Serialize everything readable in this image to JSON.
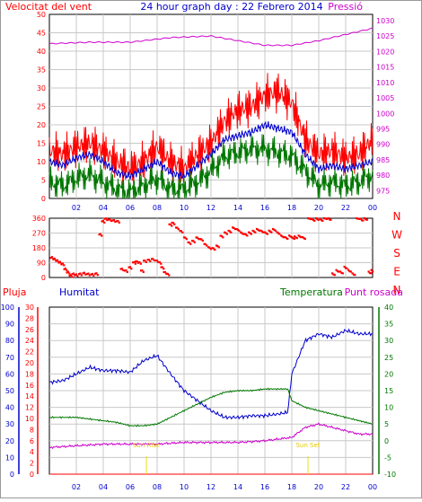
{
  "top_panel": {
    "title": "24 hour graph day : 22 Febrero 2014",
    "left_label": "Velocitat del vent",
    "right_label": "Pressió"
  },
  "direction_panel": {
    "compass": [
      "N",
      "W",
      "S",
      "E",
      "N"
    ]
  },
  "bottom_panel": {
    "labels": {
      "pluja": "Pluja",
      "humitat": "Humitat",
      "temperatura": "Temperatura",
      "punt_rosada": "Punt rosada"
    },
    "sun_rise": "Sun Rise",
    "sun_set": "Sun Set"
  },
  "colors": {
    "wind": "#ff0000",
    "wind_avg": "#0000cc",
    "wind_green": "#007700",
    "pressure": "#cc00cc",
    "humidity": "#0000cc",
    "temperature": "#007700",
    "dewpoint": "#cc00cc",
    "rain": "#ff0000",
    "title": "#0000cc",
    "sun_line": "#e6e600"
  },
  "chart_data": [
    {
      "type": "line",
      "title": "24 hour graph day : 22 Febrero 2014",
      "xlabel": "",
      "x_ticks": [
        "02",
        "04",
        "06",
        "08",
        "10",
        "12",
        "14",
        "16",
        "18",
        "20",
        "22",
        "00"
      ],
      "y_left": {
        "label": "Velocitat del vent",
        "ticks": [
          0,
          5,
          10,
          15,
          20,
          25,
          30,
          35,
          40,
          45,
          50
        ],
        "lim": [
          0,
          50
        ]
      },
      "y_right": {
        "label": "Pressió",
        "ticks": [
          975,
          980,
          985,
          990,
          995,
          1000,
          1005,
          1010,
          1015,
          1020,
          1025,
          1030
        ],
        "lim": [
          972.5,
          1032
        ]
      },
      "series": [
        {
          "name": "Velocitat del vent",
          "hours": [
            0,
            1,
            2,
            3,
            4,
            5,
            6,
            7,
            8,
            9,
            10,
            11,
            12,
            13,
            14,
            15,
            16,
            17,
            18,
            19,
            20,
            21,
            22,
            23,
            24
          ],
          "gust_values": [
            15,
            14,
            16,
            17,
            15,
            12,
            10,
            12,
            16,
            12,
            10,
            14,
            17,
            23,
            26,
            27,
            30,
            31,
            28,
            18,
            14,
            15,
            13,
            14,
            18
          ],
          "avg_values": [
            10,
            9,
            11,
            12,
            10,
            7,
            6,
            8,
            10,
            7,
            6,
            9,
            12,
            16,
            17,
            18,
            20,
            19,
            18,
            12,
            8,
            9,
            8,
            9,
            10
          ],
          "low_values": [
            6,
            5,
            7,
            8,
            6,
            4,
            3,
            5,
            7,
            4,
            4,
            6,
            9,
            13,
            14,
            15,
            15,
            14,
            13,
            9,
            5,
            6,
            5,
            6,
            8
          ]
        },
        {
          "name": "Pressió",
          "hours": [
            0,
            3,
            6,
            9,
            12,
            14,
            16,
            18,
            20,
            22,
            24
          ],
          "values": [
            1022.5,
            1023.0,
            1023.0,
            1024.5,
            1025.0,
            1023.5,
            1022.0,
            1022.0,
            1023.5,
            1025.5,
            1027.5
          ]
        }
      ]
    },
    {
      "type": "scatter",
      "title": "",
      "x_ticks": [
        "02",
        "04",
        "06",
        "08",
        "10",
        "12",
        "14",
        "16",
        "18",
        "20",
        "22",
        "00"
      ],
      "y_ticks": [
        0,
        90,
        180,
        270,
        360
      ],
      "ylim": [
        0,
        360
      ],
      "series": [
        {
          "name": "",
          "points": [
            [
              0.1,
              120
            ],
            [
              0.3,
              110
            ],
            [
              0.5,
              100
            ],
            [
              0.7,
              90
            ],
            [
              0.9,
              80
            ],
            [
              1.1,
              50
            ],
            [
              1.3,
              30
            ],
            [
              1.5,
              10
            ],
            [
              1.7,
              20
            ],
            [
              1.9,
              15
            ],
            [
              2.2,
              20
            ],
            [
              2.5,
              25
            ],
            [
              2.8,
              20
            ],
            [
              3.1,
              18
            ],
            [
              3.4,
              22
            ],
            [
              3.7,
              260
            ],
            [
              3.9,
              340
            ],
            [
              4.1,
              355
            ],
            [
              4.4,
              350
            ],
            [
              4.7,
              345
            ],
            [
              5.0,
              340
            ],
            [
              5.3,
              50
            ],
            [
              5.6,
              40
            ],
            [
              5.9,
              60
            ],
            [
              6.2,
              90
            ],
            [
              6.4,
              95
            ],
            [
              6.6,
              90
            ],
            [
              6.8,
              40
            ],
            [
              7.0,
              100
            ],
            [
              7.3,
              105
            ],
            [
              7.6,
              110
            ],
            [
              7.9,
              100
            ],
            [
              8.1,
              90
            ],
            [
              8.3,
              60
            ],
            [
              8.5,
              30
            ],
            [
              8.7,
              20
            ],
            [
              8.9,
              320
            ],
            [
              9.1,
              330
            ],
            [
              9.4,
              300
            ],
            [
              9.7,
              280
            ],
            [
              10.0,
              240
            ],
            [
              10.3,
              210
            ],
            [
              10.6,
              220
            ],
            [
              10.9,
              240
            ],
            [
              11.2,
              230
            ],
            [
              11.5,
              200
            ],
            [
              11.8,
              180
            ],
            [
              12.1,
              175
            ],
            [
              12.4,
              190
            ],
            [
              12.7,
              250
            ],
            [
              13.0,
              270
            ],
            [
              13.3,
              280
            ],
            [
              13.6,
              300
            ],
            [
              13.9,
              290
            ],
            [
              14.2,
              270
            ],
            [
              14.5,
              260
            ],
            [
              14.8,
              270
            ],
            [
              15.1,
              280
            ],
            [
              15.4,
              290
            ],
            [
              15.7,
              280
            ],
            [
              16.0,
              270
            ],
            [
              16.3,
              280
            ],
            [
              16.6,
              290
            ],
            [
              16.9,
              270
            ],
            [
              17.2,
              250
            ],
            [
              17.5,
              240
            ],
            [
              17.8,
              250
            ],
            [
              18.0,
              240
            ],
            [
              18.2,
              245
            ],
            [
              18.5,
              250
            ],
            [
              18.8,
              240
            ],
            [
              19.2,
              360
            ],
            [
              19.5,
              350
            ],
            [
              19.8,
              355
            ],
            [
              20.1,
              350
            ],
            [
              20.4,
              360
            ],
            [
              20.7,
              355
            ],
            [
              21.0,
              20
            ],
            [
              21.3,
              40
            ],
            [
              21.6,
              30
            ],
            [
              21.9,
              60
            ],
            [
              22.2,
              40
            ],
            [
              22.5,
              20
            ],
            [
              22.8,
              360
            ],
            [
              23.1,
              350
            ],
            [
              23.4,
              355
            ],
            [
              23.7,
              30
            ],
            [
              23.9,
              40
            ]
          ]
        }
      ]
    },
    {
      "type": "line",
      "title": "",
      "x_ticks": [
        "02",
        "04",
        "06",
        "08",
        "10",
        "12",
        "14",
        "16",
        "18",
        "20",
        "22",
        "00"
      ],
      "y_axes": [
        {
          "label": "Humitat",
          "ticks": [
            0,
            10,
            20,
            30,
            40,
            50,
            60,
            70,
            80,
            90,
            100
          ],
          "lim": [
            0,
            100
          ]
        },
        {
          "label": "Pluja",
          "ticks": [
            0,
            2,
            4,
            6,
            8,
            10,
            12,
            14,
            16,
            18,
            20,
            22,
            24,
            26,
            28,
            30
          ],
          "lim": [
            0,
            30
          ]
        },
        {
          "label": "",
          "ticks": [
            -10,
            -5,
            0,
            5,
            10,
            15,
            20,
            25,
            30,
            35,
            40
          ],
          "lim": [
            -10,
            40
          ]
        }
      ],
      "series": [
        {
          "name": "Humitat",
          "hours": [
            0,
            1,
            2,
            3,
            4,
            5,
            6,
            7,
            8,
            9,
            10,
            11,
            12,
            13,
            14,
            15,
            16,
            17,
            17.7,
            18,
            19,
            20,
            21,
            22,
            23,
            24
          ],
          "values": [
            55,
            56,
            60,
            64,
            62,
            62,
            61,
            68,
            71,
            60,
            50,
            44,
            38,
            34,
            34,
            35,
            35,
            36,
            37,
            60,
            80,
            84,
            82,
            86,
            84,
            84
          ]
        },
        {
          "name": "Temperatura",
          "hours": [
            0,
            1,
            2,
            3,
            4,
            5,
            6,
            7,
            8,
            9,
            10,
            11,
            12,
            13,
            14,
            15,
            16,
            17,
            17.7,
            18,
            19,
            20,
            21,
            22,
            23,
            24
          ],
          "values": [
            7,
            7,
            7,
            6.5,
            6,
            5.5,
            4.5,
            4.5,
            5,
            7,
            9,
            11,
            13,
            14.5,
            15,
            15,
            15.5,
            15.5,
            15.5,
            12,
            10,
            9,
            8,
            7,
            6,
            5
          ]
        },
        {
          "name": "Punt rosada",
          "hours": [
            0,
            2,
            4,
            6,
            8,
            10,
            12,
            14,
            16,
            18,
            19,
            20,
            21,
            22,
            23,
            24
          ],
          "values": [
            -2,
            -1.5,
            -1,
            -1,
            -1,
            -0.5,
            -0.5,
            -0.5,
            0,
            1,
            4,
            5,
            4,
            3,
            2,
            2
          ]
        },
        {
          "name": "Pluja",
          "hours": [
            0,
            24
          ],
          "values": [
            0,
            0
          ]
        }
      ]
    }
  ]
}
